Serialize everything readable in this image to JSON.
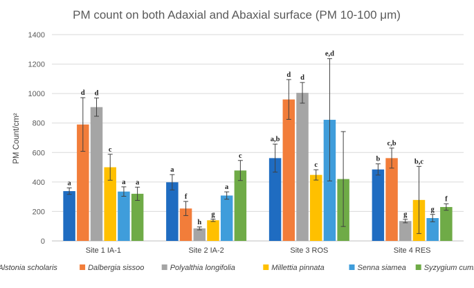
{
  "chart_data": {
    "type": "bar",
    "title": "PM count on both Adaxial and Abaxial surface (PM 10-100 μm)",
    "ylabel": "PM Count/cm²",
    "xlabel": "",
    "ylim": [
      0,
      1400
    ],
    "yticks": [
      0,
      200,
      400,
      600,
      800,
      1000,
      1200,
      1400
    ],
    "grid": true,
    "legend_position": "bottom",
    "categories": [
      "Site 1 IA-1",
      "Site 2 IA-2",
      "Site 3 ROS",
      "Site 4 RES"
    ],
    "series": [
      {
        "name": "Alstonia scholaris",
        "color": "#1f6cc1",
        "values": [
          338,
          398,
          562,
          485
        ],
        "errors": [
          22,
          52,
          95,
          38
        ],
        "labels": [
          "a",
          "a",
          "a,b",
          "b"
        ]
      },
      {
        "name": "Dalbergia sissoo",
        "color": "#f27d3a",
        "values": [
          790,
          220,
          960,
          562
        ],
        "errors": [
          182,
          48,
          135,
          68
        ],
        "labels": [
          "d",
          "f",
          "d",
          "c,b"
        ]
      },
      {
        "name": "Polyalthia longifolia",
        "color": "#a5a5a5",
        "values": [
          908,
          85,
          1005,
          135
        ],
        "errors": [
          62,
          10,
          70,
          12
        ],
        "labels": [
          "d",
          "h",
          "d",
          "g"
        ]
      },
      {
        "name": "Millettia pinnata",
        "color": "#ffc000",
        "values": [
          500,
          140,
          448,
          278
        ],
        "errors": [
          88,
          8,
          35,
          228
        ],
        "labels": [
          "c",
          "g",
          "c",
          "b,c"
        ]
      },
      {
        "name": "Senna siamea",
        "color": "#3f9ddb",
        "values": [
          335,
          308,
          822,
          155
        ],
        "errors": [
          32,
          25,
          415,
          25
        ],
        "labels": [
          "a",
          "a",
          "e,d",
          "g"
        ]
      },
      {
        "name": "Syzygium cumini",
        "color": "#6fab47",
        "values": [
          320,
          478,
          420,
          230
        ],
        "errors": [
          45,
          68,
          322,
          22
        ],
        "labels": [
          "a",
          "c",
          "",
          "f"
        ]
      }
    ]
  }
}
